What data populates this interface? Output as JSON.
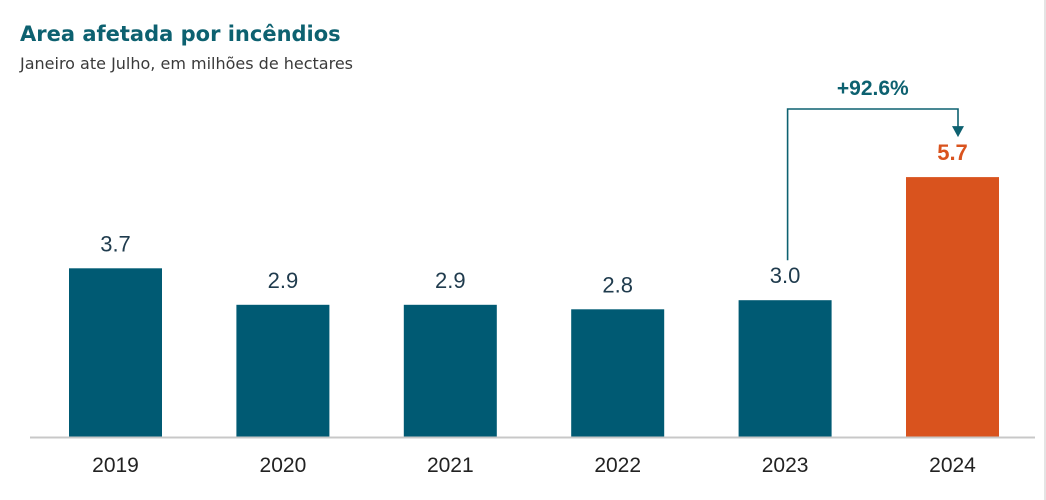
{
  "colors": {
    "bar": "#005a73",
    "highlight": "#d9531e",
    "title": "#0d6170",
    "axis": "#c8c8c8",
    "connector": "#0d6170"
  },
  "chart_data": {
    "type": "bar",
    "title": "Area afetada por incêndios",
    "subtitle": "Janeiro ate Julho, em milhões de hectares",
    "categories": [
      "2019",
      "2020",
      "2021",
      "2022",
      "2023",
      "2024"
    ],
    "values": [
      3.7,
      2.9,
      2.9,
      2.8,
      3.0,
      5.7
    ],
    "value_labels": [
      "3.7",
      "2.9",
      "2.9",
      "2.8",
      "3.0",
      "5.7"
    ],
    "highlight_index": 5,
    "ylim": [
      0,
      6.5
    ],
    "grid": false,
    "legend": "none",
    "annotation": {
      "text": "+92.6%",
      "from_index": 4,
      "to_index": 5
    }
  }
}
